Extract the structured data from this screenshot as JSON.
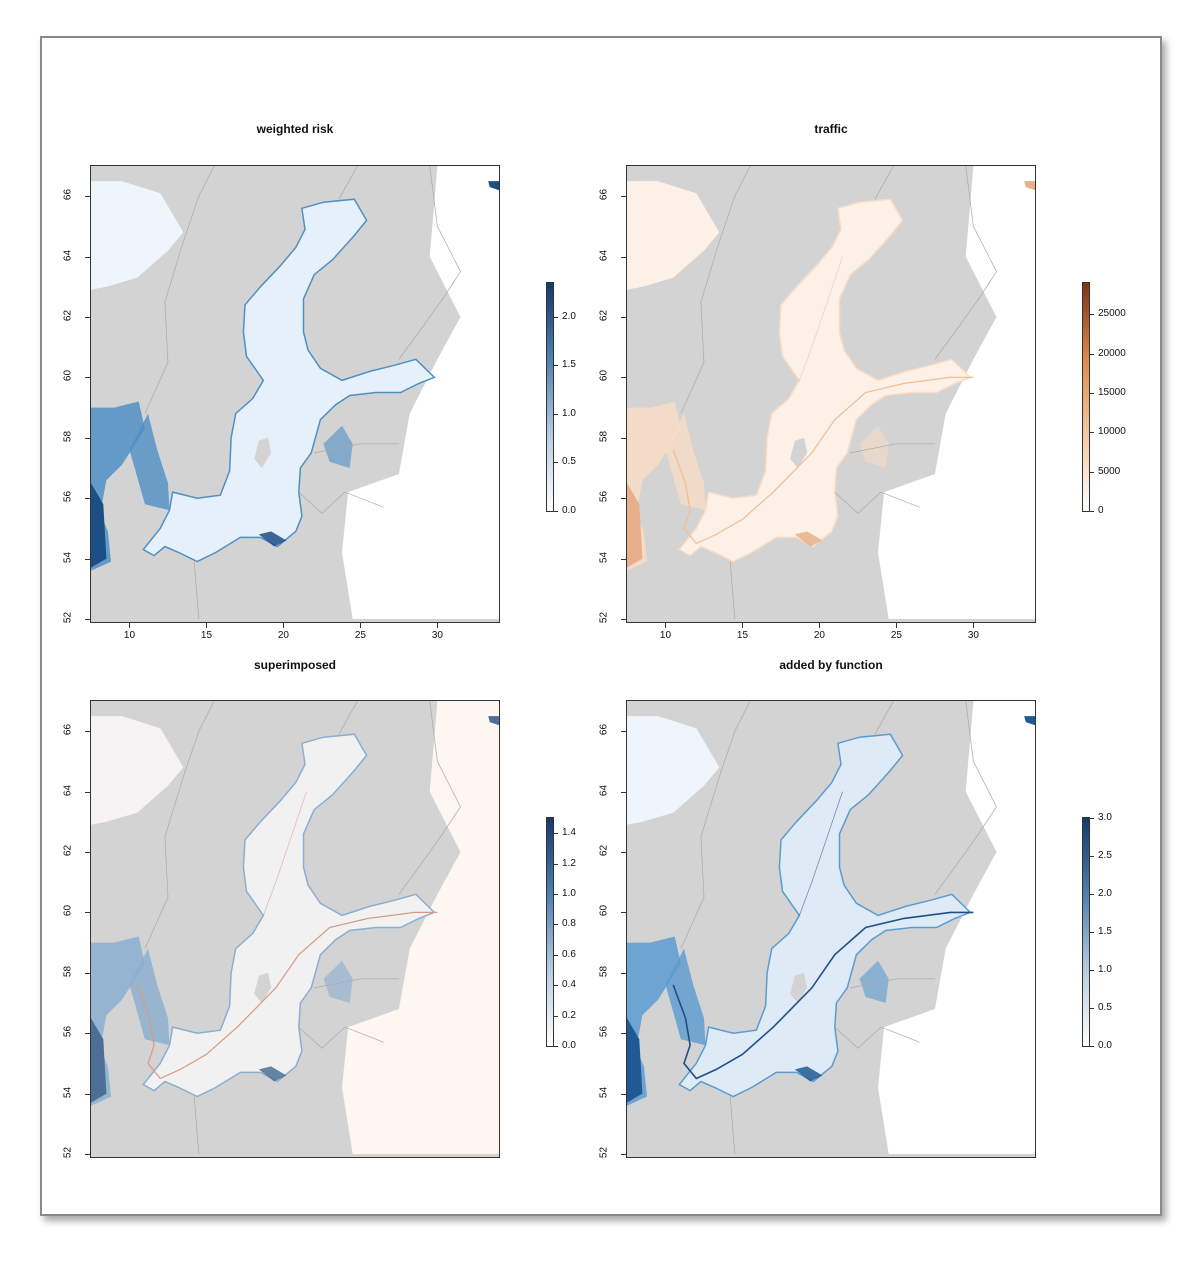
{
  "panels": [
    {
      "id": "weighted-risk",
      "title": "weighted risk",
      "y_ticks": [
        "52",
        "54",
        "56",
        "58",
        "60",
        "62",
        "64",
        "66"
      ],
      "x_ticks": [
        "10",
        "15",
        "20",
        "25",
        "30"
      ],
      "legend_ticks": [
        "0.0",
        "0.5",
        "1.0",
        "1.5",
        "2.0"
      ],
      "legend_max": 2.35,
      "colors": {
        "sea": "#e6f0fa",
        "coast": "#4f8fc4",
        "dark": "#1c4f86"
      }
    },
    {
      "id": "traffic",
      "title": "traffic",
      "y_ticks": [
        "52",
        "54",
        "56",
        "58",
        "60",
        "62",
        "64",
        "66"
      ],
      "x_ticks": [
        "10",
        "15",
        "20",
        "25",
        "30"
      ],
      "legend_ticks": [
        "0",
        "5000",
        "10000",
        "15000",
        "20000",
        "25000"
      ],
      "legend_max": 29000,
      "colors": {
        "sea": "#fdf0e6",
        "coast": "#f7dcc6",
        "dark": "#e7b08a"
      }
    },
    {
      "id": "superimposed",
      "title": "superimposed",
      "y_ticks": [
        "52",
        "54",
        "56",
        "58",
        "60",
        "62",
        "64",
        "66"
      ],
      "x_ticks": [],
      "legend_ticks": [
        "0.0",
        "0.2",
        "0.4",
        "0.6",
        "0.8",
        "1.0",
        "1.2",
        "1.4"
      ],
      "legend_max": 1.5,
      "colors": {
        "sea": "#f2f1f2",
        "coast": "#8aaed0",
        "dark": "#4d6f96"
      }
    },
    {
      "id": "added-by-function",
      "title": "added by function",
      "y_ticks": [
        "52",
        "54",
        "56",
        "58",
        "60",
        "62",
        "64",
        "66"
      ],
      "x_ticks": [],
      "legend_ticks": [
        "0.0",
        "0.5",
        "1.0",
        "1.5",
        "2.0",
        "2.5",
        "3.0"
      ],
      "legend_max": 3.0,
      "colors": {
        "sea": "#dfeaf7",
        "coast": "#5a9bd0",
        "dark": "#1f5a96"
      }
    }
  ]
}
